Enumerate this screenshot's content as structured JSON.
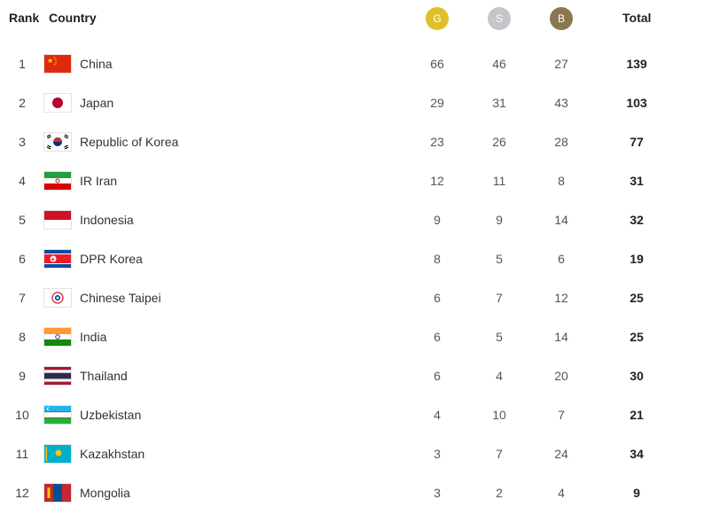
{
  "header": {
    "rank": "Rank",
    "country": "Country",
    "gold": {
      "label": "G",
      "color": "#e0c028"
    },
    "silver": {
      "label": "S",
      "color": "#c4c6cc"
    },
    "bronze": {
      "label": "B",
      "color": "#8a7752"
    },
    "total": "Total"
  },
  "rows": [
    {
      "rank": "1",
      "country": "China",
      "flag": "china-flag-icon",
      "g": "66",
      "s": "46",
      "b": "27",
      "total": "139"
    },
    {
      "rank": "2",
      "country": "Japan",
      "flag": "japan-flag-icon",
      "g": "29",
      "s": "31",
      "b": "43",
      "total": "103"
    },
    {
      "rank": "3",
      "country": "Republic of Korea",
      "flag": "korea-flag-icon",
      "g": "23",
      "s": "26",
      "b": "28",
      "total": "77"
    },
    {
      "rank": "4",
      "country": "IR Iran",
      "flag": "iran-flag-icon",
      "g": "12",
      "s": "11",
      "b": "8",
      "total": "31"
    },
    {
      "rank": "5",
      "country": "Indonesia",
      "flag": "indonesia-flag-icon",
      "g": "9",
      "s": "9",
      "b": "14",
      "total": "32"
    },
    {
      "rank": "6",
      "country": "DPR Korea",
      "flag": "dpr-korea-flag-icon",
      "g": "8",
      "s": "5",
      "b": "6",
      "total": "19"
    },
    {
      "rank": "7",
      "country": "Chinese Taipei",
      "flag": "chinese-taipei-flag-icon",
      "g": "6",
      "s": "7",
      "b": "12",
      "total": "25"
    },
    {
      "rank": "8",
      "country": "India",
      "flag": "india-flag-icon",
      "g": "6",
      "s": "5",
      "b": "14",
      "total": "25"
    },
    {
      "rank": "9",
      "country": "Thailand",
      "flag": "thailand-flag-icon",
      "g": "6",
      "s": "4",
      "b": "20",
      "total": "30"
    },
    {
      "rank": "10",
      "country": "Uzbekistan",
      "flag": "uzbekistan-flag-icon",
      "g": "4",
      "s": "10",
      "b": "7",
      "total": "21"
    },
    {
      "rank": "11",
      "country": "Kazakhstan",
      "flag": "kazakhstan-flag-icon",
      "g": "3",
      "s": "7",
      "b": "24",
      "total": "34"
    },
    {
      "rank": "12",
      "country": "Mongolia",
      "flag": "mongolia-flag-icon",
      "g": "3",
      "s": "2",
      "b": "4",
      "total": "9"
    }
  ]
}
